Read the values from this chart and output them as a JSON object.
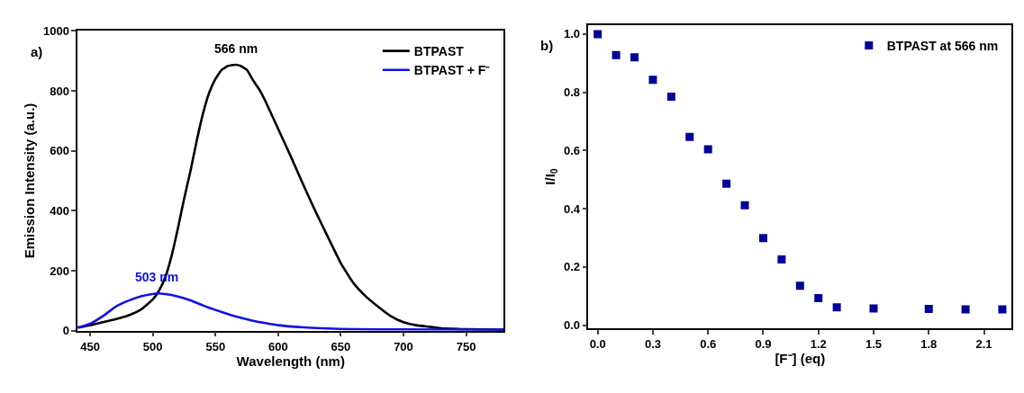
{
  "chart_data": [
    {
      "type": "line",
      "xlabel": "Wavelength (nm)",
      "ylabel": "Emission Intensity (a.u.)",
      "xlim": [
        440,
        780
      ],
      "ylim": [
        0,
        1000
      ],
      "xticks": [
        450,
        500,
        550,
        600,
        650,
        700,
        750
      ],
      "yticks": [
        0,
        200,
        400,
        600,
        800,
        1000
      ],
      "legend": "top right",
      "marker": "none",
      "line_style": "solid",
      "annotations": [
        {
          "text": "566 nm",
          "x": 566,
          "y": 887
        },
        {
          "text": "503 nm",
          "x": 503,
          "y": 124
        },
        "a)"
      ],
      "series": [
        {
          "name": "BTPAST",
          "color": "#000000",
          "x": [
            440,
            450,
            460,
            470,
            480,
            490,
            500,
            505,
            510,
            515,
            520,
            525,
            530,
            535,
            540,
            545,
            550,
            555,
            560,
            566,
            570,
            575,
            580,
            585,
            590,
            600,
            610,
            620,
            630,
            640,
            650,
            660,
            670,
            680,
            690,
            700,
            710,
            720,
            730,
            750,
            780
          ],
          "values": [
            10,
            18,
            28,
            38,
            50,
            69,
            104,
            134,
            179,
            250,
            341,
            441,
            532,
            633,
            724,
            794,
            840,
            870,
            883,
            887,
            883,
            870,
            835,
            804,
            764,
            673,
            582,
            487,
            396,
            310,
            225,
            159,
            114,
            79,
            48,
            28,
            18,
            13,
            8,
            5,
            3
          ]
        },
        {
          "name": "BTPAST + F⁻",
          "color": "#1010e8",
          "x": [
            440,
            450,
            460,
            470,
            480,
            490,
            503,
            510,
            520,
            530,
            540,
            550,
            560,
            570,
            580,
            590,
            600,
            620,
            640,
            660,
            700,
            780
          ],
          "values": [
            10,
            23,
            48,
            79,
            99,
            114,
            124,
            122,
            114,
            101,
            84,
            69,
            55,
            43,
            33,
            25,
            18,
            11,
            7,
            5,
            4,
            3
          ]
        }
      ]
    },
    {
      "type": "scatter",
      "xlabel": "[F⁻] (eq)",
      "ylabel": "I/I$_{0}$",
      "xlim": [
        -0.05,
        2.25
      ],
      "ylim": [
        -0.01,
        1.03
      ],
      "xticks": [
        {
          "value": 0,
          "label": "0.0"
        },
        0.3,
        0.6,
        0.9,
        1.2,
        1.5,
        1.8,
        2.1
      ],
      "yticks": [
        {
          "value": 0,
          "label": "0.0"
        },
        0.2,
        0.4,
        0.6,
        0.8,
        {
          "value": 1,
          "label": "1.0"
        }
      ],
      "legend": "top right",
      "marker": "square",
      "annotations": [
        "b)"
      ],
      "series": [
        {
          "name": "BTPAST at 566 nm",
          "color": "#000099",
          "x": [
            0,
            0.1,
            0.2,
            0.3,
            0.4,
            0.5,
            0.6,
            0.7,
            0.8,
            0.9,
            1.0,
            1.1,
            1.2,
            1.3,
            1.5,
            1.8,
            2.0,
            2.2
          ],
          "values": [
            1.0,
            0.928,
            0.92,
            0.843,
            0.785,
            0.647,
            0.604,
            0.486,
            0.412,
            0.299,
            0.226,
            0.135,
            0.093,
            0.061,
            0.057,
            0.056,
            0.054,
            0.054
          ]
        }
      ]
    }
  ]
}
